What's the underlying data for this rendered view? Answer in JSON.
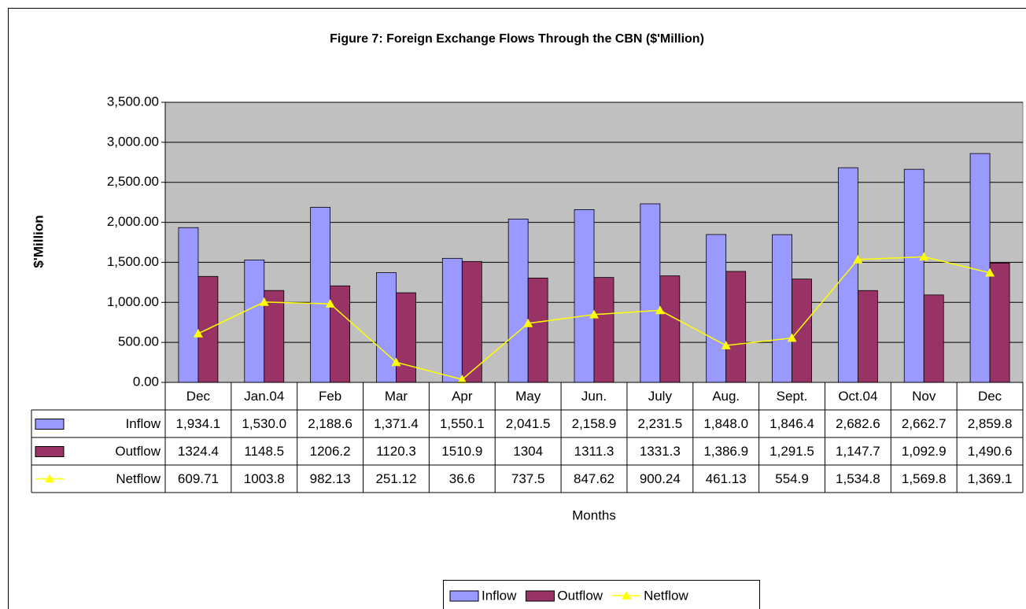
{
  "chart_data": {
    "type": "bar-line",
    "title": "Figure 7: Foreign Exchange Flows Through the CBN ($'Million)",
    "y_label": "$'Million",
    "x_label": "Months",
    "categories": [
      "Dec",
      "Jan.04",
      "Feb",
      "Mar",
      "Apr",
      "May",
      "Jun.",
      "July",
      "Aug.",
      "Sept.",
      "Oct.04",
      "Nov",
      "Dec"
    ],
    "series": [
      {
        "name": "Inflow",
        "type": "bar",
        "color": "#9999ff",
        "values": [
          1934.1,
          1530.0,
          2188.6,
          1371.4,
          1550.1,
          2041.5,
          2158.9,
          2231.5,
          1848.0,
          1846.4,
          2682.6,
          2662.7,
          2859.8
        ],
        "value_labels": [
          "1,934.1",
          "1,530.0",
          "2,188.6",
          "1,371.4",
          "1,550.1",
          "2,041.5",
          "2,158.9",
          "2,231.5",
          "1,848.0",
          "1,846.4",
          "2,682.6",
          "2,662.7",
          "2,859.8"
        ]
      },
      {
        "name": "Outflow",
        "type": "bar",
        "color": "#993366",
        "values": [
          1324.4,
          1148.5,
          1206.2,
          1120.3,
          1510.9,
          1304,
          1311.3,
          1331.3,
          1386.9,
          1291.5,
          1147.7,
          1092.9,
          1490.6
        ],
        "value_labels": [
          "1324.4",
          "1148.5",
          "1206.2",
          "1120.3",
          "1510.9",
          "1304",
          "1311.3",
          "1331.3",
          "1,386.9",
          "1,291.5",
          "1,147.7",
          "1,092.9",
          "1,490.6"
        ]
      },
      {
        "name": "Netflow",
        "type": "line",
        "color": "#ffff00",
        "values": [
          609.71,
          1003.8,
          982.13,
          251.12,
          36.6,
          737.5,
          847.62,
          900.24,
          461.13,
          554.9,
          1534.8,
          1569.8,
          1369.1
        ],
        "value_labels": [
          "609.71",
          "1003.8",
          "982.13",
          "251.12",
          "36.6",
          "737.5",
          "847.62",
          "900.24",
          "461.13",
          "554.9",
          "1,534.8",
          "1,569.8",
          "1,369.1"
        ]
      }
    ],
    "ylim": [
      0,
      3500
    ],
    "yticks": [
      {
        "value": 0,
        "label": "0.00"
      },
      {
        "value": 500,
        "label": "500.00"
      },
      {
        "value": 1000,
        "label": "1,000.00"
      },
      {
        "value": 1500,
        "label": "1,500.00"
      },
      {
        "value": 2000,
        "label": "2,000.00"
      },
      {
        "value": 2500,
        "label": "2,500.00"
      },
      {
        "value": 3000,
        "label": "3,000.00"
      },
      {
        "value": 3500,
        "label": "3,500.00"
      }
    ],
    "grid": true,
    "legend": "bottom"
  }
}
